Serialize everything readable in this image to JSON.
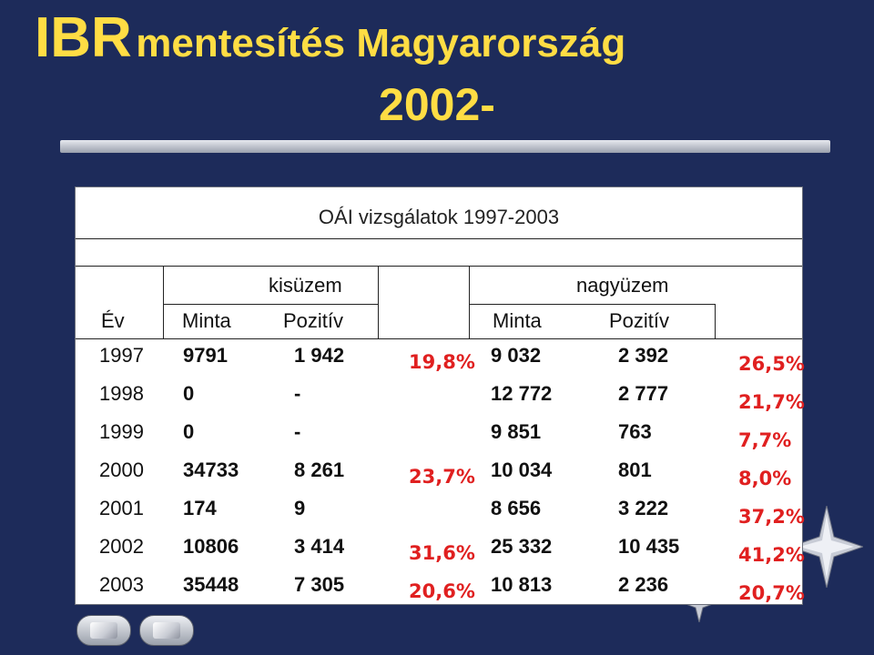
{
  "slide": {
    "title_abbr": "IBR",
    "title_rest": "mentesítés Magyarország",
    "subtitle": "2002-"
  },
  "table": {
    "caption": "OÁI vizsgálatok 1997-2003",
    "group_small": "kisüzem",
    "group_large": "nagyüzem",
    "col_year": "Év",
    "col_sample": "Minta",
    "col_positive": "Pozitív",
    "rows": [
      {
        "year": "1997",
        "s_minta": "9791",
        "s_poz": "1 942",
        "s_pct": "19,8%",
        "l_minta": "9 032",
        "l_poz": "2 392",
        "l_pct": "26,5%"
      },
      {
        "year": "1998",
        "s_minta": "0",
        "s_poz": "-",
        "s_pct": "",
        "l_minta": "12 772",
        "l_poz": "2 777",
        "l_pct": "21,7%"
      },
      {
        "year": "1999",
        "s_minta": "0",
        "s_poz": "-",
        "s_pct": "",
        "l_minta": "9 851",
        "l_poz": "763",
        "l_pct": "7,7%"
      },
      {
        "year": "2000",
        "s_minta": "34733",
        "s_poz": "8 261",
        "s_pct": "23,7%",
        "l_minta": "10 034",
        "l_poz": "801",
        "l_pct": "8,0%"
      },
      {
        "year": "2001",
        "s_minta": "174",
        "s_poz": "9",
        "s_pct": "",
        "l_minta": "8 656",
        "l_poz": "3 222",
        "l_pct": "37,2%"
      },
      {
        "year": "2002",
        "s_minta": "10806",
        "s_poz": "3 414",
        "s_pct": "31,6%",
        "l_minta": "25 332",
        "l_poz": "10 435",
        "l_pct": "41,2%"
      },
      {
        "year": "2003",
        "s_minta": "35448",
        "s_poz": "7 305",
        "s_pct": "20,6%",
        "l_minta": "10 813",
        "l_poz": "2 236",
        "l_pct": "20,7%"
      }
    ]
  },
  "icons": {
    "prev": "prev-slide-icon",
    "next": "next-slide-icon",
    "decoration": "star-icon"
  },
  "colors": {
    "background": "#1d2b5a",
    "title": "#ffdd44",
    "percent": "#e02020"
  }
}
